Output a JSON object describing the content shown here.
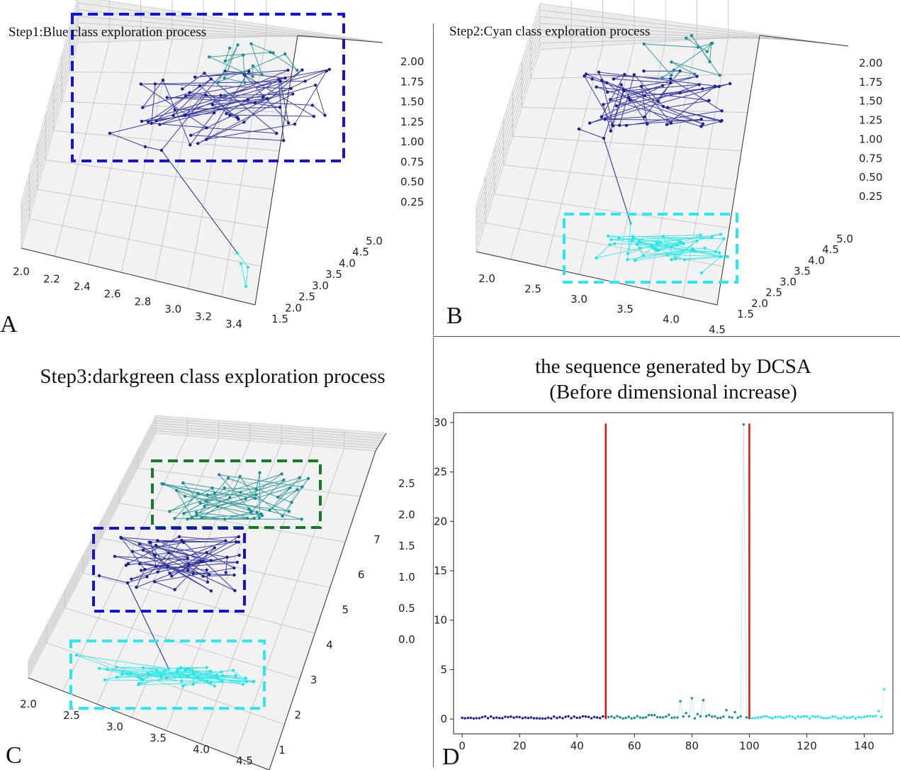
{
  "chart_data": [
    {
      "panel": "A",
      "type": "scatter",
      "title": "Step1:Blue class exploration process",
      "x_ticks": [
        "2.0",
        "2.2",
        "2.4",
        "2.6",
        "2.8",
        "3.0",
        "3.2",
        "3.4"
      ],
      "y_ticks": [
        "1.5",
        "2.0",
        "2.5",
        "3.0",
        "3.5",
        "4.0",
        "4.5",
        "5.0"
      ],
      "z_ticks": [
        "0.25",
        "0.50",
        "0.75",
        "1.00",
        "1.25",
        "1.50",
        "1.75",
        "2.00"
      ],
      "series": [
        {
          "name": "blue",
          "color": "#1f1f8f"
        },
        {
          "name": "cyan",
          "color": "#22e6e6"
        },
        {
          "name": "teal",
          "color": "#1a8f8f"
        }
      ],
      "highlight_boxes": [
        {
          "label": "blue class",
          "color": "#1414d2"
        }
      ]
    },
    {
      "panel": "B",
      "type": "scatter",
      "title": "Step2:Cyan class exploration process",
      "x_ticks": [
        "2.0",
        "2.5",
        "3.0",
        "3.5",
        "4.0",
        "4.5"
      ],
      "y_ticks": [
        "1.5",
        "2.0",
        "2.5",
        "3.0",
        "3.5",
        "4.0",
        "4.5",
        "5.0"
      ],
      "z_ticks": [
        "0.25",
        "0.50",
        "0.75",
        "1.00",
        "1.25",
        "1.50",
        "1.75",
        "2.00"
      ],
      "series": [
        {
          "name": "blue",
          "color": "#1f1f8f"
        },
        {
          "name": "cyan",
          "color": "#22e6e6"
        },
        {
          "name": "teal",
          "color": "#1a8f8f"
        }
      ],
      "highlight_boxes": [
        {
          "label": "cyan class",
          "color": "#2ee6ee"
        }
      ]
    },
    {
      "panel": "C",
      "type": "scatter",
      "title": "Step3:darkgreen class exploration process",
      "x_ticks": [
        "2.0",
        "2.5",
        "3.0",
        "3.5",
        "4.0",
        "4.5"
      ],
      "y_ticks": [
        "1",
        "2",
        "3",
        "4",
        "5",
        "6",
        "7"
      ],
      "z_ticks": [
        "0.0",
        "0.5",
        "1.0",
        "1.5",
        "2.0",
        "2.5"
      ],
      "series": [
        {
          "name": "blue",
          "color": "#1f1f8f"
        },
        {
          "name": "cyan",
          "color": "#22e6e6"
        },
        {
          "name": "teal",
          "color": "#1a8f8f"
        }
      ],
      "highlight_boxes": [
        {
          "label": "darkgreen class",
          "color": "#137a27"
        },
        {
          "label": "blue class",
          "color": "#1414d2"
        },
        {
          "label": "cyan class",
          "color": "#2ee6ee"
        }
      ]
    },
    {
      "panel": "D",
      "type": "line",
      "title_lines": [
        "the sequence generated by DCSA",
        "(Before dimensional increase)"
      ],
      "xlim": [
        -3,
        150
      ],
      "ylim": [
        -1.5,
        31
      ],
      "x_ticks": [
        0,
        20,
        40,
        60,
        80,
        100,
        120,
        140
      ],
      "y_ticks": [
        0,
        5,
        10,
        15,
        20,
        25,
        30
      ],
      "vlines": [
        {
          "x": 50,
          "ymin": 0,
          "ymax": 29.9,
          "color": "#e01010"
        },
        {
          "x": 100,
          "ymin": 0,
          "ymax": 29.9,
          "color": "#e01010"
        }
      ],
      "spike": {
        "x": 98,
        "y": 29.8
      },
      "series": [
        {
          "name": "blue",
          "x_range": [
            0,
            50
          ],
          "color": "#1f1f8f"
        },
        {
          "name": "teal",
          "x_range": [
            50,
            100
          ],
          "color": "#1a8f8f"
        },
        {
          "name": "cyan",
          "x_range": [
            100,
            147
          ],
          "color": "#22e6e6"
        }
      ]
    }
  ],
  "panel_letters": {
    "a": "A",
    "b": "B",
    "c": "C",
    "d": "D"
  }
}
